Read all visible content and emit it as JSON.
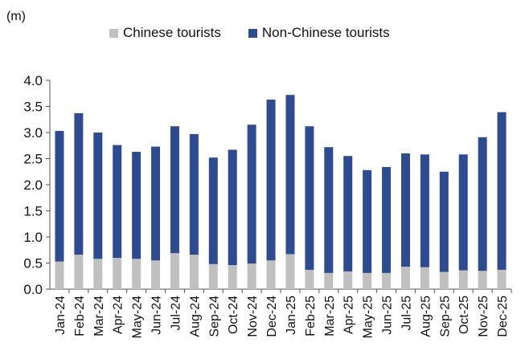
{
  "chart_data": {
    "type": "bar",
    "stacked": true,
    "unit_label": "(m)",
    "categories": [
      "Jan-24",
      "Feb-24",
      "Mar-24",
      "Apr-24",
      "May-24",
      "Jun-24",
      "Jul-24",
      "Aug-24",
      "Sep-24",
      "Oct-24",
      "Nov-24",
      "Dec-24",
      "Jan-25",
      "Feb-25",
      "Mar-25",
      "Apr-25",
      "May-25",
      "Jun-25",
      "Jul-25",
      "Aug-25",
      "Sep-25",
      "Oct-25",
      "Nov-25",
      "Dec-25"
    ],
    "series": [
      {
        "name": "Chinese tourists",
        "color": "#c0c0c0",
        "values": [
          0.53,
          0.66,
          0.58,
          0.6,
          0.58,
          0.55,
          0.69,
          0.66,
          0.48,
          0.46,
          0.49,
          0.55,
          0.67,
          0.37,
          0.31,
          0.34,
          0.31,
          0.31,
          0.43,
          0.42,
          0.33,
          0.36,
          0.35,
          0.37
        ]
      },
      {
        "name": "Non-Chinese tourists",
        "color": "#2e4b8f",
        "values": [
          2.5,
          2.71,
          2.42,
          2.16,
          2.05,
          2.18,
          2.43,
          2.31,
          2.04,
          2.21,
          2.66,
          3.08,
          3.05,
          2.75,
          2.41,
          2.21,
          1.97,
          2.03,
          2.17,
          2.16,
          1.92,
          2.22,
          2.56,
          3.02
        ]
      }
    ],
    "yticks": [
      "0.0",
      "0.5",
      "1.0",
      "1.5",
      "2.0",
      "2.5",
      "3.0",
      "3.5",
      "4.0"
    ],
    "ylim": [
      0,
      4
    ],
    "grid": false,
    "legend_position": "top"
  }
}
